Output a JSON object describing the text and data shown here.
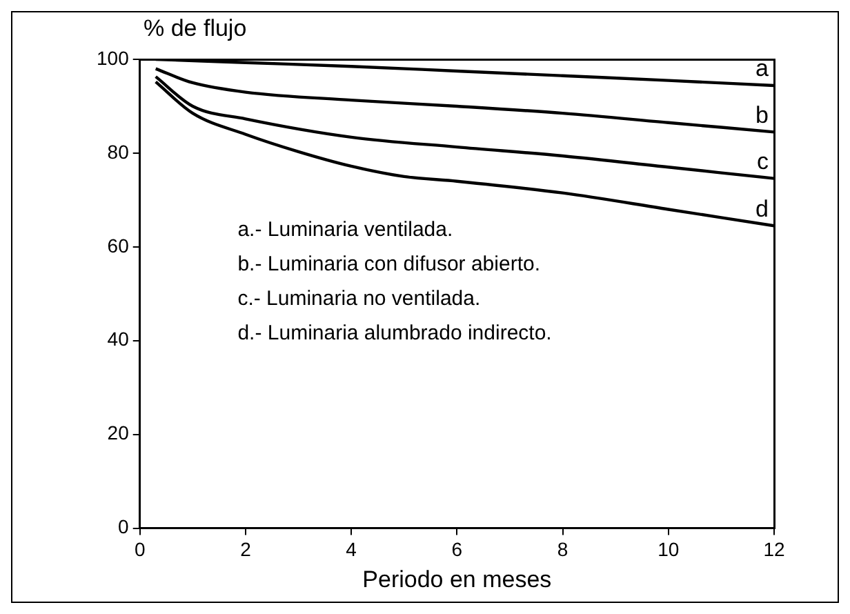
{
  "chart_data": {
    "type": "line",
    "ylabel": "% de flujo",
    "xlabel": "Periodo en meses",
    "xlim": [
      0,
      12
    ],
    "xticks": [
      0,
      2,
      4,
      6,
      8,
      10,
      12
    ],
    "ylim": [
      0,
      100
    ],
    "yticks": [
      0,
      20,
      40,
      60,
      80,
      100
    ],
    "grid": false,
    "legend": false,
    "marker": "none",
    "line_style": "solid",
    "series": [
      {
        "name": "a",
        "color": "#000000",
        "x": [
          0.3,
          2,
          4,
          6,
          8,
          10,
          12
        ],
        "values": [
          100,
          99.3,
          98.5,
          97.5,
          96.5,
          95.5,
          94.4
        ]
      },
      {
        "name": "b",
        "color": "#000000",
        "x": [
          0.3,
          1,
          2,
          4,
          6,
          8,
          10,
          12
        ],
        "values": [
          98,
          95,
          93,
          91.3,
          90,
          88.5,
          86.5,
          84.5
        ]
      },
      {
        "name": "c",
        "color": "#000000",
        "x": [
          0.3,
          1,
          2,
          4,
          6,
          8,
          10,
          12
        ],
        "values": [
          96.3,
          90,
          87.3,
          83.4,
          81.3,
          79.4,
          77,
          74.6
        ]
      },
      {
        "name": "d",
        "color": "#000000",
        "x": [
          0.3,
          1,
          2,
          3,
          4,
          5,
          6,
          8,
          10,
          12
        ],
        "values": [
          95.2,
          88.5,
          84,
          80.3,
          77.2,
          75,
          74,
          71.5,
          68,
          64.5
        ]
      }
    ],
    "annotations": [
      "a.- Luminaria ventilada.",
      "b.- Luminaria con difusor abierto.",
      "c.- Luminaria no ventilada.",
      "d.- Luminaria alumbrado indirecto."
    ]
  }
}
